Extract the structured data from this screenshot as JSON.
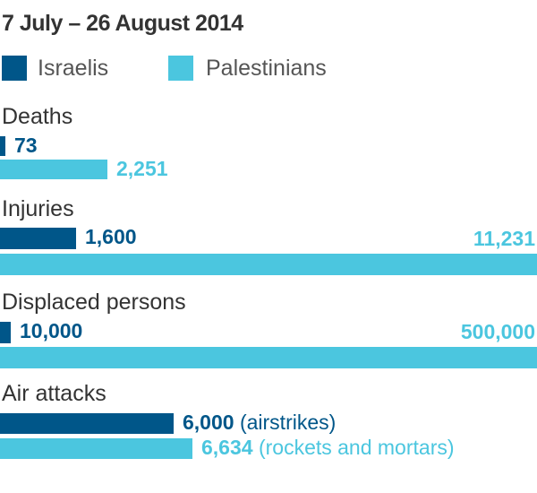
{
  "title": "7 July – 26 August 2014",
  "colors": {
    "israelis": "#005689",
    "palestinians": "#4bc6df"
  },
  "legend": [
    {
      "name": "Israelis",
      "color": "#005689"
    },
    {
      "name": "Palestinians",
      "color": "#4bc6df"
    }
  ],
  "chart_data": [
    {
      "type": "bar",
      "title": "Deaths",
      "categories": [
        "Israelis",
        "Palestinians"
      ],
      "values": [
        73,
        2251
      ],
      "labels": [
        "73",
        "2,251"
      ],
      "notes": [
        "",
        ""
      ]
    },
    {
      "type": "bar",
      "title": "Injuries",
      "categories": [
        "Israelis",
        "Palestinians"
      ],
      "values": [
        1600,
        11231
      ],
      "labels": [
        "1,600",
        "11,231"
      ],
      "notes": [
        "",
        ""
      ]
    },
    {
      "type": "bar",
      "title": "Displaced persons",
      "categories": [
        "Israelis",
        "Palestinians"
      ],
      "values": [
        10000,
        500000
      ],
      "labels": [
        "10,000",
        "500,000"
      ],
      "notes": [
        "",
        ""
      ]
    },
    {
      "type": "bar",
      "title": "Air attacks",
      "categories": [
        "Israelis",
        "Palestinians"
      ],
      "values": [
        6000,
        6634
      ],
      "labels": [
        "6,000",
        "6,634"
      ],
      "notes": [
        "(airstrikes)",
        "(rockets and mortars)"
      ]
    }
  ]
}
